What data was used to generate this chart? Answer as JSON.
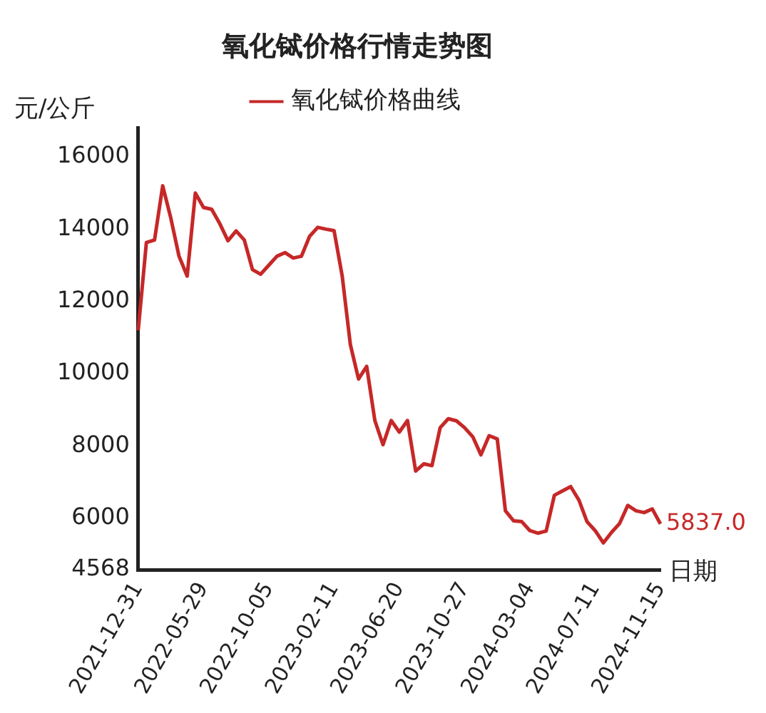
{
  "chart_data": {
    "type": "line",
    "title": "氧化铽价格行情走势图",
    "xlabel": "日期",
    "ylabel": "元/公斤",
    "categories": [
      "2021-12-31",
      null,
      null,
      null,
      null,
      null,
      null,
      null,
      "2022-05-29",
      null,
      null,
      null,
      null,
      null,
      null,
      null,
      "2022-10-05",
      null,
      null,
      null,
      null,
      null,
      null,
      null,
      "2023-02-11",
      null,
      null,
      null,
      null,
      null,
      null,
      null,
      "2023-06-20",
      null,
      null,
      null,
      null,
      null,
      null,
      null,
      "2023-10-27",
      null,
      null,
      null,
      null,
      null,
      null,
      null,
      "2024-03-04",
      null,
      null,
      null,
      null,
      null,
      null,
      null,
      "2024-07-11",
      null,
      null,
      null,
      null,
      null,
      null,
      null,
      "2024-11-15"
    ],
    "series": [
      {
        "name": "氧化铽价格曲线",
        "color": "#c62828",
        "values": [
          11200,
          13630,
          13700,
          15200,
          14300,
          13250,
          12700,
          15000,
          14600,
          14550,
          14150,
          13680,
          13950,
          13700,
          12880,
          12750,
          13000,
          13250,
          13350,
          13200,
          13250,
          13800,
          14050,
          14000,
          13960,
          12700,
          10800,
          9850,
          10200,
          8700,
          8030,
          8700,
          8380,
          8700,
          7300,
          7500,
          7450,
          8500,
          8750,
          8690,
          8500,
          8250,
          7750,
          8280,
          8190,
          6200,
          5920,
          5900,
          5650,
          5580,
          5640,
          6630,
          6750,
          6870,
          6500,
          5900,
          5650,
          5310,
          5600,
          5850,
          6350,
          6200,
          6150,
          6250,
          5837
        ]
      }
    ],
    "ylim": [
      4568,
      16800
    ],
    "yticks": [
      4568,
      6000,
      8000,
      10000,
      12000,
      14000,
      16000
    ],
    "grid": false,
    "legend": "top",
    "line_style": "solid",
    "marker": "none",
    "annotations": [
      {
        "text": "5837.0",
        "x": "2024-11-15",
        "y": 5837
      }
    ]
  }
}
